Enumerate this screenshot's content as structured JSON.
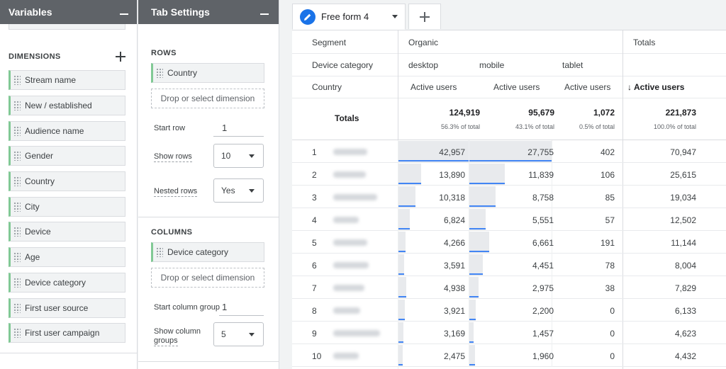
{
  "variables_panel": {
    "title": "Variables",
    "dimensions_title": "DIMENSIONS",
    "dimensions": [
      "Stream name",
      "New / established",
      "Audience name",
      "Gender",
      "Country",
      "City",
      "Device",
      "Age",
      "Device category",
      "First user source",
      "First user campaign"
    ]
  },
  "tab_settings": {
    "title": "Tab Settings",
    "rows_title": "ROWS",
    "rows_dimension": "Country",
    "drop_label": "Drop or select dimension",
    "start_row_label": "Start row",
    "start_row_value": "1",
    "show_rows_label": "Show rows",
    "show_rows_value": "10",
    "nested_rows_label": "Nested rows",
    "nested_rows_value": "Yes",
    "columns_title": "COLUMNS",
    "columns_dimension": "Device category",
    "start_col_group_label": "Start column group",
    "start_col_group_value": "1",
    "show_col_groups_label_1": "Show column",
    "show_col_groups_label_2": "groups",
    "show_col_groups_value": "5"
  },
  "report": {
    "tab_label": "Free form 4",
    "header": {
      "segment_label": "Segment",
      "segment_value": "Organic",
      "totals_label": "Totals",
      "device_label": "Device category",
      "devices": [
        "desktop",
        "mobile",
        "tablet"
      ],
      "country_label": "Country",
      "metric": "Active users",
      "sorted_metric": "Active users"
    },
    "totals": {
      "label": "Totals",
      "values": [
        "124,919",
        "95,679",
        "1,072",
        "221,873"
      ],
      "percents": [
        "56.3% of total",
        "43.1% of total",
        "0.5% of total",
        "100.0% of total"
      ]
    },
    "rows": [
      {
        "rank": "1",
        "desktop": "42,957",
        "mobile": "27,755",
        "tablet": "402",
        "total": "70,947",
        "desktop_frac": 1.0,
        "mobile_frac": 1.0
      },
      {
        "rank": "2",
        "desktop": "13,890",
        "mobile": "11,839",
        "tablet": "106",
        "total": "25,615",
        "desktop_frac": 0.32,
        "mobile_frac": 0.43
      },
      {
        "rank": "3",
        "desktop": "10,318",
        "mobile": "8,758",
        "tablet": "85",
        "total": "19,034",
        "desktop_frac": 0.24,
        "mobile_frac": 0.32
      },
      {
        "rank": "4",
        "desktop": "6,824",
        "mobile": "5,551",
        "tablet": "57",
        "total": "12,502",
        "desktop_frac": 0.16,
        "mobile_frac": 0.2
      },
      {
        "rank": "5",
        "desktop": "4,266",
        "mobile": "6,661",
        "tablet": "191",
        "total": "11,144",
        "desktop_frac": 0.1,
        "mobile_frac": 0.24
      },
      {
        "rank": "6",
        "desktop": "3,591",
        "mobile": "4,451",
        "tablet": "78",
        "total": "8,004",
        "desktop_frac": 0.08,
        "mobile_frac": 0.16
      },
      {
        "rank": "7",
        "desktop": "4,938",
        "mobile": "2,975",
        "tablet": "38",
        "total": "7,829",
        "desktop_frac": 0.11,
        "mobile_frac": 0.11
      },
      {
        "rank": "8",
        "desktop": "3,921",
        "mobile": "2,200",
        "tablet": "0",
        "total": "6,133",
        "desktop_frac": 0.09,
        "mobile_frac": 0.08
      },
      {
        "rank": "9",
        "desktop": "3,169",
        "mobile": "1,457",
        "tablet": "0",
        "total": "4,623",
        "desktop_frac": 0.07,
        "mobile_frac": 0.05
      },
      {
        "rank": "10",
        "desktop": "2,475",
        "mobile": "1,960",
        "tablet": "0",
        "total": "4,432",
        "desktop_frac": 0.06,
        "mobile_frac": 0.07
      }
    ]
  },
  "colors": {
    "accent": "#1a73e8",
    "bar_line": "#4285f4",
    "chip_border": "#81c995",
    "panel_header": "#5f6368"
  }
}
